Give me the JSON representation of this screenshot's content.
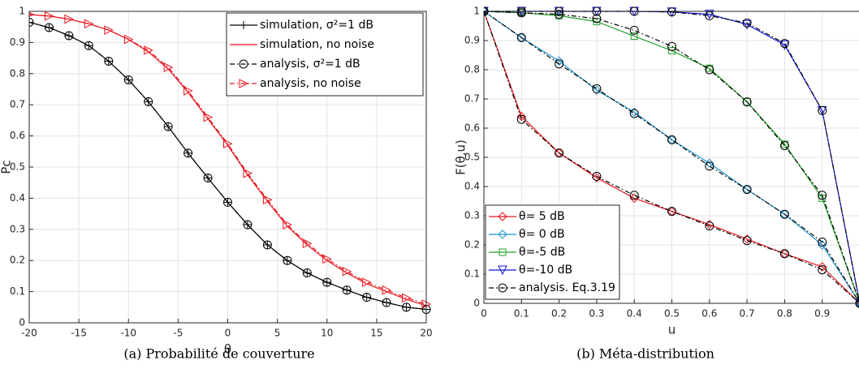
{
  "chart_data": [
    {
      "type": "line",
      "caption": "(a) Probabilité de couverture",
      "xlabel": "θ",
      "ylabel": "Pc",
      "x": [
        -20,
        -18,
        -16,
        -14,
        -12,
        -10,
        -8,
        -6,
        -4,
        -2,
        0,
        2,
        4,
        6,
        8,
        10,
        12,
        14,
        16,
        18,
        20
      ],
      "xlim": [
        -20,
        20
      ],
      "xticks": [
        -20,
        -15,
        -10,
        -5,
        0,
        5,
        10,
        15,
        20
      ],
      "ylim": [
        0,
        1
      ],
      "yticks": [
        0,
        0.1,
        0.2,
        0.3,
        0.4,
        0.5,
        0.6,
        0.7,
        0.8,
        0.9,
        1
      ],
      "grid": true,
      "legend": "upper right",
      "series": [
        {
          "name": "simulation, σ²=1 dB",
          "color": "#000000",
          "marker": "plus",
          "line_style": "solid",
          "values": [
            0.965,
            0.948,
            0.922,
            0.89,
            0.84,
            0.78,
            0.71,
            0.63,
            0.545,
            0.465,
            0.387,
            0.315,
            0.25,
            0.2,
            0.16,
            0.13,
            0.105,
            0.082,
            0.065,
            0.05,
            0.043
          ]
        },
        {
          "name": "simulation, no noise",
          "color": "#e8141c",
          "marker": "none",
          "line_style": "solid",
          "values": [
            0.99,
            0.985,
            0.975,
            0.96,
            0.94,
            0.91,
            0.87,
            0.815,
            0.74,
            0.655,
            0.57,
            0.475,
            0.39,
            0.31,
            0.25,
            0.2,
            0.16,
            0.125,
            0.1,
            0.075,
            0.055
          ]
        },
        {
          "name": "analysis, σ²=1 dB",
          "color": "#000000",
          "marker": "circle",
          "line_style": "dashdot",
          "values": [
            0.965,
            0.948,
            0.922,
            0.89,
            0.84,
            0.78,
            0.71,
            0.63,
            0.545,
            0.465,
            0.387,
            0.315,
            0.25,
            0.2,
            0.16,
            0.13,
            0.105,
            0.082,
            0.065,
            0.05,
            0.043
          ]
        },
        {
          "name": "analysis, no noise",
          "color": "#e8141c",
          "marker": "triangle-right",
          "line_style": "dashdot",
          "values": [
            0.99,
            0.985,
            0.975,
            0.96,
            0.94,
            0.91,
            0.875,
            0.82,
            0.745,
            0.66,
            0.575,
            0.48,
            0.395,
            0.315,
            0.255,
            0.205,
            0.165,
            0.13,
            0.105,
            0.08,
            0.06
          ]
        }
      ]
    },
    {
      "type": "line",
      "caption": "(b) Méta-distribution",
      "xlabel": "u",
      "ylabel": "F(θ,u)",
      "x": [
        0,
        0.1,
        0.2,
        0.3,
        0.4,
        0.5,
        0.6,
        0.7,
        0.8,
        0.9,
        1
      ],
      "xlim": [
        0,
        1
      ],
      "xticks": [
        0,
        0.1,
        0.2,
        0.3,
        0.4,
        0.5,
        0.6,
        0.7,
        0.8,
        0.9
      ],
      "ylim": [
        0,
        1
      ],
      "yticks": [
        0,
        0.1,
        0.2,
        0.3,
        0.4,
        0.5,
        0.6,
        0.7,
        0.8,
        0.9,
        1
      ],
      "grid": true,
      "legend": "lower left",
      "series": [
        {
          "name": "θ= 5 dB",
          "color": "#e8141c",
          "marker": "diamond",
          "line_style": "solid",
          "values": [
            1,
            0.64,
            0.515,
            0.43,
            0.36,
            0.315,
            0.27,
            0.22,
            0.17,
            0.125,
            0
          ]
        },
        {
          "name": "θ= 0 dB",
          "color": "#1f95cf",
          "marker": "diamond",
          "line_style": "solid",
          "values": [
            1,
            0.91,
            0.83,
            0.73,
            0.655,
            0.56,
            0.48,
            0.39,
            0.305,
            0.2,
            0
          ]
        },
        {
          "name": "θ=-5 dB",
          "color": "#22a02a",
          "marker": "square",
          "line_style": "solid",
          "values": [
            1,
            0.995,
            0.985,
            0.965,
            0.915,
            0.865,
            0.805,
            0.69,
            0.545,
            0.36,
            0
          ]
        },
        {
          "name": "θ=-10 dB",
          "color": "#1414e0",
          "marker": "triangle-down",
          "line_style": "solid",
          "values": [
            1,
            1,
            1,
            1,
            1,
            0.998,
            0.99,
            0.955,
            0.885,
            0.66,
            0
          ]
        },
        {
          "name": "analysis. Eq.3.19",
          "color": "#000000",
          "marker": "circle",
          "line_style": "dashdot",
          "values": [
            [
              1,
              0.63,
              0.515,
              0.435,
              0.37,
              0.315,
              0.265,
              0.215,
              0.17,
              0.115,
              0
            ],
            [
              1,
              0.91,
              0.82,
              0.735,
              0.65,
              0.56,
              0.47,
              0.39,
              0.305,
              0.21,
              0
            ],
            [
              1,
              0.995,
              0.99,
              0.975,
              0.935,
              0.88,
              0.8,
              0.69,
              0.54,
              0.37,
              0
            ],
            [
              1,
              1,
              1,
              1,
              1,
              0.998,
              0.985,
              0.96,
              0.89,
              0.66,
              0
            ]
          ]
        }
      ]
    }
  ]
}
